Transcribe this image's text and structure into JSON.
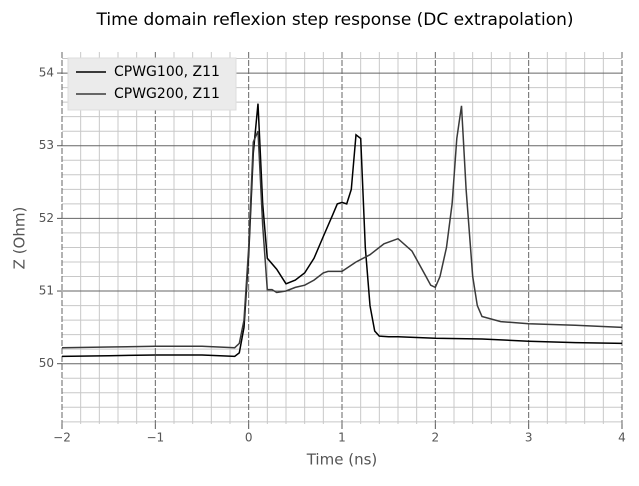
{
  "chart_data": {
    "type": "line",
    "title": "Time domain reflexion step response (DC extrapolation)",
    "x_label": "Time (ns)",
    "y_label": "Z (Ohm)",
    "series": [
      {
        "name": "CPWG100, Z11",
        "color": "#000000",
        "x": [
          -2,
          -1.5,
          -1,
          -0.5,
          -0.15,
          -0.1,
          -0.05,
          0,
          0.05,
          0.1,
          0.15,
          0.2,
          0.3,
          0.4,
          0.5,
          0.6,
          0.7,
          0.8,
          0.9,
          0.95,
          1.0,
          1.05,
          1.1,
          1.15,
          1.2,
          1.25,
          1.3,
          1.35,
          1.4,
          1.5,
          1.6,
          1.8,
          2,
          2.5,
          3,
          3.5,
          4
        ],
        "values": [
          50.1,
          50.11,
          50.12,
          50.12,
          50.1,
          50.15,
          50.5,
          51.5,
          52.9,
          53.58,
          52.2,
          51.45,
          51.3,
          51.1,
          51.15,
          51.25,
          51.45,
          51.75,
          52.05,
          52.2,
          52.22,
          52.2,
          52.4,
          53.15,
          53.1,
          51.6,
          50.8,
          50.45,
          50.38,
          50.37,
          50.37,
          50.36,
          50.35,
          50.34,
          50.31,
          50.29,
          50.28
        ]
      },
      {
        "name": "CPWG200, Z11",
        "color": "#3a3a3a",
        "x": [
          -2,
          -1.5,
          -1,
          -0.5,
          -0.15,
          -0.1,
          -0.05,
          0,
          0.05,
          0.1,
          0.15,
          0.2,
          0.25,
          0.3,
          0.4,
          0.5,
          0.6,
          0.7,
          0.8,
          0.85,
          1.0,
          1.15,
          1.3,
          1.45,
          1.6,
          1.75,
          1.9,
          1.95,
          2.0,
          2.05,
          2.12,
          2.18,
          2.23,
          2.28,
          2.33,
          2.4,
          2.45,
          2.5,
          2.7,
          3,
          3.5,
          4
        ],
        "values": [
          50.22,
          50.23,
          50.24,
          50.24,
          50.22,
          50.28,
          50.6,
          51.6,
          53.05,
          53.2,
          51.9,
          51.02,
          51.02,
          50.98,
          51.0,
          51.05,
          51.08,
          51.15,
          51.25,
          51.27,
          51.27,
          51.4,
          51.5,
          51.65,
          51.72,
          51.55,
          51.2,
          51.08,
          51.05,
          51.2,
          51.6,
          52.2,
          53.1,
          53.55,
          52.4,
          51.2,
          50.8,
          50.65,
          50.58,
          50.55,
          50.53,
          50.5
        ]
      }
    ],
    "xlim": [
      -2,
      4
    ],
    "ylim": [
      49.17,
      54.29
    ],
    "xticks": [
      {
        "value": -2,
        "label": "−2"
      },
      {
        "value": -1,
        "label": "−1"
      },
      0,
      1,
      2,
      3,
      4
    ],
    "yticks": [
      50,
      51,
      52,
      53,
      54
    ],
    "xminorticks": [
      -1.8,
      -1.6,
      -1.4,
      -1.2,
      -0.8,
      -0.6,
      -0.4,
      -0.2,
      0.2,
      0.4,
      0.6,
      0.8,
      1.2,
      1.4,
      1.6,
      1.8,
      2.2,
      2.4,
      2.6,
      2.8,
      3.2,
      3.4,
      3.6,
      3.8
    ],
    "yminorticks": [
      49.2,
      49.4,
      49.6,
      49.8,
      50.2,
      50.4,
      50.6,
      50.8,
      51.2,
      51.4,
      51.6,
      51.8,
      52.2,
      52.4,
      52.6,
      52.8,
      53.2,
      53.4,
      53.6,
      53.8,
      54.2
    ],
    "grid": true,
    "legend": "upper left"
  }
}
